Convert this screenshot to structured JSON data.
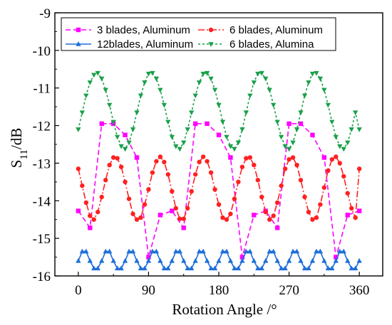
{
  "chart_data": {
    "type": "line",
    "title": "",
    "xlabel": "Rotation Angle /°",
    "ylabel_main": "S",
    "ylabel_sub": "11",
    "ylabel_unit": "/dB",
    "xlim": [
      -30,
      390
    ],
    "ylim": [
      -16,
      -9
    ],
    "xticks": [
      0,
      90,
      180,
      270,
      360
    ],
    "yticks": [
      -16,
      -15,
      -14,
      -13,
      -12,
      -11,
      -10,
      -9
    ],
    "legend_position": "top",
    "series": [
      {
        "name": "3 blades, Aluminum",
        "color": "#ff00ff",
        "marker": "square",
        "dash": "7,4",
        "x": [
          0,
          15,
          30,
          45,
          60,
          75,
          90,
          105,
          120,
          135,
          150,
          165,
          180,
          195,
          210,
          225,
          240,
          255,
          270,
          285,
          300,
          315,
          330,
          345,
          360
        ],
        "y": [
          -14.27,
          -14.72,
          -11.95,
          -11.95,
          -12.25,
          -12.85,
          -15.5,
          -14.38,
          -14.27,
          -14.72,
          -11.95,
          -11.95,
          -12.25,
          -12.85,
          -15.5,
          -14.38,
          -14.27,
          -14.72,
          -11.95,
          -11.95,
          -12.25,
          -12.85,
          -15.5,
          -14.38,
          -14.27
        ]
      },
      {
        "name": "6 blades, Aluminum",
        "color": "#ff2020",
        "marker": "circle",
        "dash": "9,3,2,3",
        "x": [
          0,
          5,
          10,
          15,
          20,
          25,
          30,
          35,
          40,
          45,
          50,
          55,
          60,
          65,
          70,
          75,
          80,
          85,
          90,
          95,
          100,
          105,
          110,
          115,
          120,
          125,
          130,
          135,
          140,
          145,
          150,
          155,
          160,
          165,
          170,
          175,
          180,
          185,
          190,
          195,
          200,
          205,
          210,
          215,
          220,
          225,
          230,
          235,
          240,
          245,
          250,
          255,
          260,
          265,
          270,
          275,
          280,
          285,
          290,
          295,
          300,
          305,
          310,
          315,
          320,
          325,
          330,
          335,
          340,
          345,
          350,
          355,
          360
        ],
        "y": [
          -13.15,
          -13.6,
          -14.05,
          -14.4,
          -14.5,
          -14.3,
          -13.9,
          -13.45,
          -13.05,
          -12.85,
          -12.87,
          -13.1,
          -13.5,
          -13.95,
          -14.35,
          -14.5,
          -14.45,
          -14.1,
          -13.7,
          -13.25,
          -12.95,
          -12.83,
          -12.97,
          -13.3,
          -13.75,
          -14.2,
          -14.48,
          -14.48,
          -14.2,
          -13.75,
          -13.3,
          -12.97,
          -12.83,
          -12.95,
          -13.25,
          -13.7,
          -14.1,
          -14.45,
          -14.5,
          -14.35,
          -13.95,
          -13.5,
          -13.1,
          -12.87,
          -12.85,
          -13.05,
          -13.45,
          -13.9,
          -14.3,
          -14.5,
          -14.4,
          -14.05,
          -13.6,
          -13.15,
          -12.9,
          -12.85,
          -13.05,
          -13.45,
          -13.9,
          -14.3,
          -14.5,
          -14.45,
          -14.1,
          -13.65,
          -13.2,
          -12.9,
          -12.83,
          -13.0,
          -13.35,
          -13.8,
          -14.2,
          -14.45,
          -13.15
        ]
      },
      {
        "name": "12blades, Aluminum",
        "color": "#1e6fd9",
        "marker": "triangle-up",
        "dash": "",
        "x": [
          0,
          5,
          10,
          15,
          20,
          25,
          30,
          35,
          40,
          45,
          50,
          55,
          60,
          65,
          70,
          75,
          80,
          85,
          90,
          95,
          100,
          105,
          110,
          115,
          120,
          125,
          130,
          135,
          140,
          145,
          150,
          155,
          160,
          165,
          170,
          175,
          180,
          185,
          190,
          195,
          200,
          205,
          210,
          215,
          220,
          225,
          230,
          235,
          240,
          245,
          250,
          255,
          260,
          265,
          270,
          275,
          280,
          285,
          290,
          295,
          300,
          305,
          310,
          315,
          320,
          325,
          330,
          335,
          340,
          345,
          350,
          355,
          360
        ],
        "y": [
          -15.6,
          -15.35,
          -15.35,
          -15.6,
          -15.8,
          -15.8,
          -15.6,
          -15.35,
          -15.35,
          -15.6,
          -15.8,
          -15.8,
          -15.6,
          -15.35,
          -15.35,
          -15.6,
          -15.8,
          -15.8,
          -15.6,
          -15.35,
          -15.35,
          -15.6,
          -15.8,
          -15.8,
          -15.6,
          -15.35,
          -15.35,
          -15.6,
          -15.8,
          -15.8,
          -15.6,
          -15.35,
          -15.35,
          -15.6,
          -15.8,
          -15.8,
          -15.6,
          -15.35,
          -15.35,
          -15.6,
          -15.8,
          -15.8,
          -15.6,
          -15.35,
          -15.35,
          -15.6,
          -15.8,
          -15.8,
          -15.6,
          -15.35,
          -15.35,
          -15.6,
          -15.8,
          -15.8,
          -15.6,
          -15.35,
          -15.35,
          -15.6,
          -15.8,
          -15.8,
          -15.6,
          -15.35,
          -15.35,
          -15.6,
          -15.8,
          -15.8,
          -15.6,
          -15.35,
          -15.35,
          -15.6,
          -15.8,
          -15.8,
          -15.6
        ]
      },
      {
        "name": "6 blades, Alumina",
        "color": "#1aa04a",
        "marker": "triangle-down",
        "dash": "3,3",
        "x": [
          0,
          5,
          10,
          15,
          20,
          25,
          30,
          35,
          40,
          45,
          50,
          55,
          60,
          65,
          70,
          75,
          80,
          85,
          90,
          95,
          100,
          105,
          110,
          115,
          120,
          125,
          130,
          135,
          140,
          145,
          150,
          155,
          160,
          165,
          170,
          175,
          180,
          185,
          190,
          195,
          200,
          205,
          210,
          215,
          220,
          225,
          230,
          235,
          240,
          245,
          250,
          255,
          260,
          265,
          270,
          275,
          280,
          285,
          290,
          295,
          300,
          305,
          310,
          315,
          320,
          325,
          330,
          335,
          340,
          345,
          350,
          355,
          360
        ],
        "y": [
          -12.1,
          -11.65,
          -11.2,
          -10.85,
          -10.65,
          -10.6,
          -10.75,
          -11.05,
          -11.45,
          -11.9,
          -12.3,
          -12.55,
          -12.62,
          -12.45,
          -12.1,
          -11.65,
          -11.2,
          -10.85,
          -10.62,
          -10.6,
          -10.75,
          -11.05,
          -11.45,
          -11.9,
          -12.3,
          -12.55,
          -12.62,
          -12.45,
          -12.1,
          -11.65,
          -11.2,
          -10.85,
          -10.62,
          -10.6,
          -10.75,
          -11.05,
          -11.45,
          -11.9,
          -12.3,
          -12.55,
          -12.62,
          -12.45,
          -12.1,
          -11.65,
          -11.2,
          -10.85,
          -10.62,
          -10.6,
          -10.75,
          -11.05,
          -11.45,
          -11.9,
          -12.3,
          -12.55,
          -12.62,
          -12.45,
          -12.1,
          -11.65,
          -11.2,
          -10.85,
          -10.62,
          -10.6,
          -10.75,
          -11.05,
          -11.45,
          -11.9,
          -12.3,
          -12.55,
          -12.62,
          -12.45,
          -12.1,
          -11.65,
          -12.1
        ]
      }
    ]
  }
}
